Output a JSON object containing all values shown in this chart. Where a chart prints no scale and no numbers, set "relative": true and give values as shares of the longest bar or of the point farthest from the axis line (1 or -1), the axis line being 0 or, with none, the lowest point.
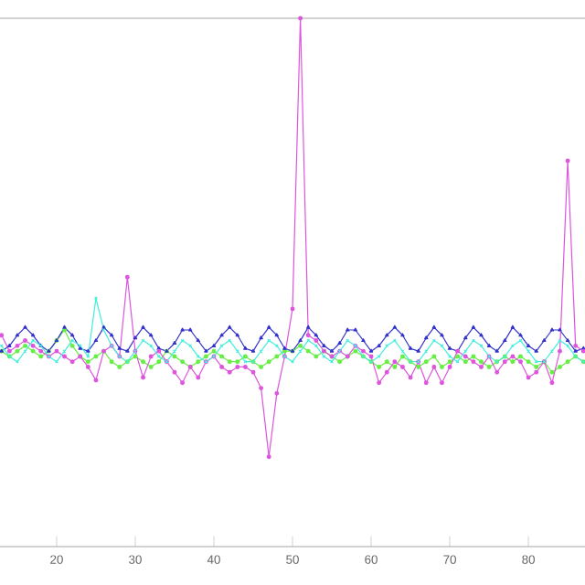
{
  "chart_data": {
    "type": "line",
    "relative": true,
    "x": [
      13,
      14,
      15,
      16,
      17,
      18,
      19,
      20,
      21,
      22,
      23,
      24,
      25,
      26,
      27,
      28,
      29,
      30,
      31,
      32,
      33,
      34,
      35,
      36,
      37,
      38,
      39,
      40,
      41,
      42,
      43,
      44,
      45,
      46,
      47,
      48,
      49,
      50,
      51,
      52,
      53,
      54,
      55,
      56,
      57,
      58,
      59,
      60,
      61,
      62,
      63,
      64,
      65,
      66,
      67,
      68,
      69,
      70,
      71,
      72,
      73,
      74,
      75,
      76,
      77,
      78,
      79,
      80,
      81,
      82,
      83,
      84,
      85,
      86,
      87
    ],
    "xlim": [
      12.8,
      87.2
    ],
    "xticks": [
      20,
      30,
      40,
      50,
      60,
      70,
      80
    ],
    "line_style": "solid",
    "series": [
      {
        "color": "#66ee44",
        "marker": "circle",
        "values": [
          0.37,
          0.36,
          0.37,
          0.38,
          0.37,
          0.36,
          0.37,
          0.39,
          0.41,
          0.38,
          0.36,
          0.35,
          0.36,
          0.37,
          0.35,
          0.34,
          0.35,
          0.36,
          0.35,
          0.34,
          0.35,
          0.37,
          0.36,
          0.35,
          0.34,
          0.35,
          0.36,
          0.37,
          0.36,
          0.35,
          0.35,
          0.36,
          0.35,
          0.34,
          0.35,
          0.36,
          0.37,
          0.37,
          0.38,
          0.37,
          0.36,
          0.37,
          0.36,
          0.35,
          0.36,
          0.37,
          0.36,
          0.35,
          0.34,
          0.35,
          0.34,
          0.36,
          0.35,
          0.34,
          0.35,
          0.36,
          0.34,
          0.35,
          0.36,
          0.35,
          0.36,
          0.35,
          0.34,
          0.35,
          0.36,
          0.35,
          0.36,
          0.35,
          0.34,
          0.35,
          0.33,
          0.34,
          0.35,
          0.36,
          0.35
        ]
      },
      {
        "color": "#3333cc",
        "marker": "triangle",
        "values": [
          0.37,
          0.38,
          0.4,
          0.415,
          0.4,
          0.38,
          0.37,
          0.39,
          0.415,
          0.4,
          0.375,
          0.37,
          0.39,
          0.415,
          0.4,
          0.375,
          0.37,
          0.395,
          0.415,
          0.4,
          0.375,
          0.37,
          0.385,
          0.41,
          0.41,
          0.39,
          0.37,
          0.38,
          0.4,
          0.415,
          0.4,
          0.375,
          0.37,
          0.395,
          0.415,
          0.4,
          0.375,
          0.37,
          0.39,
          0.415,
          0.4,
          0.38,
          0.37,
          0.385,
          0.41,
          0.41,
          0.39,
          0.37,
          0.38,
          0.4,
          0.415,
          0.4,
          0.375,
          0.37,
          0.395,
          0.415,
          0.4,
          0.375,
          0.37,
          0.395,
          0.415,
          0.4,
          0.38,
          0.37,
          0.39,
          0.415,
          0.4,
          0.38,
          0.37,
          0.39,
          0.41,
          0.41,
          0.39,
          0.37,
          0.375
        ]
      },
      {
        "color": "#dd55dd",
        "marker": "circle",
        "values": [
          0.4,
          0.37,
          0.38,
          0.39,
          0.38,
          0.37,
          0.36,
          0.37,
          0.36,
          0.35,
          0.36,
          0.34,
          0.315,
          0.37,
          0.38,
          0.36,
          0.51,
          0.37,
          0.32,
          0.36,
          0.37,
          0.35,
          0.33,
          0.31,
          0.34,
          0.32,
          0.35,
          0.36,
          0.34,
          0.33,
          0.34,
          0.34,
          0.33,
          0.3,
          0.17,
          0.29,
          0.36,
          0.45,
          1.0,
          0.4,
          0.39,
          0.37,
          0.36,
          0.37,
          0.36,
          0.38,
          0.37,
          0.36,
          0.31,
          0.33,
          0.35,
          0.34,
          0.32,
          0.35,
          0.31,
          0.34,
          0.31,
          0.34,
          0.37,
          0.36,
          0.35,
          0.34,
          0.36,
          0.33,
          0.35,
          0.36,
          0.35,
          0.32,
          0.33,
          0.35,
          0.31,
          0.37,
          0.73,
          0.38,
          0.37
        ]
      },
      {
        "color": "#44eedd",
        "marker": "cross",
        "values": [
          0.38,
          0.36,
          0.35,
          0.37,
          0.39,
          0.38,
          0.36,
          0.35,
          0.37,
          0.39,
          0.38,
          0.36,
          0.47,
          0.41,
          0.38,
          0.36,
          0.35,
          0.37,
          0.39,
          0.38,
          0.36,
          0.35,
          0.37,
          0.39,
          0.38,
          0.36,
          0.35,
          0.36,
          0.38,
          0.39,
          0.37,
          0.35,
          0.35,
          0.37,
          0.39,
          0.38,
          0.36,
          0.35,
          0.37,
          0.39,
          0.38,
          0.36,
          0.35,
          0.37,
          0.39,
          0.38,
          0.36,
          0.35,
          0.36,
          0.38,
          0.39,
          0.37,
          0.35,
          0.35,
          0.37,
          0.39,
          0.38,
          0.36,
          0.35,
          0.37,
          0.39,
          0.38,
          0.36,
          0.35,
          0.36,
          0.38,
          0.39,
          0.37,
          0.35,
          0.35,
          0.37,
          0.39,
          0.38,
          0.36,
          0.35
        ]
      }
    ]
  }
}
